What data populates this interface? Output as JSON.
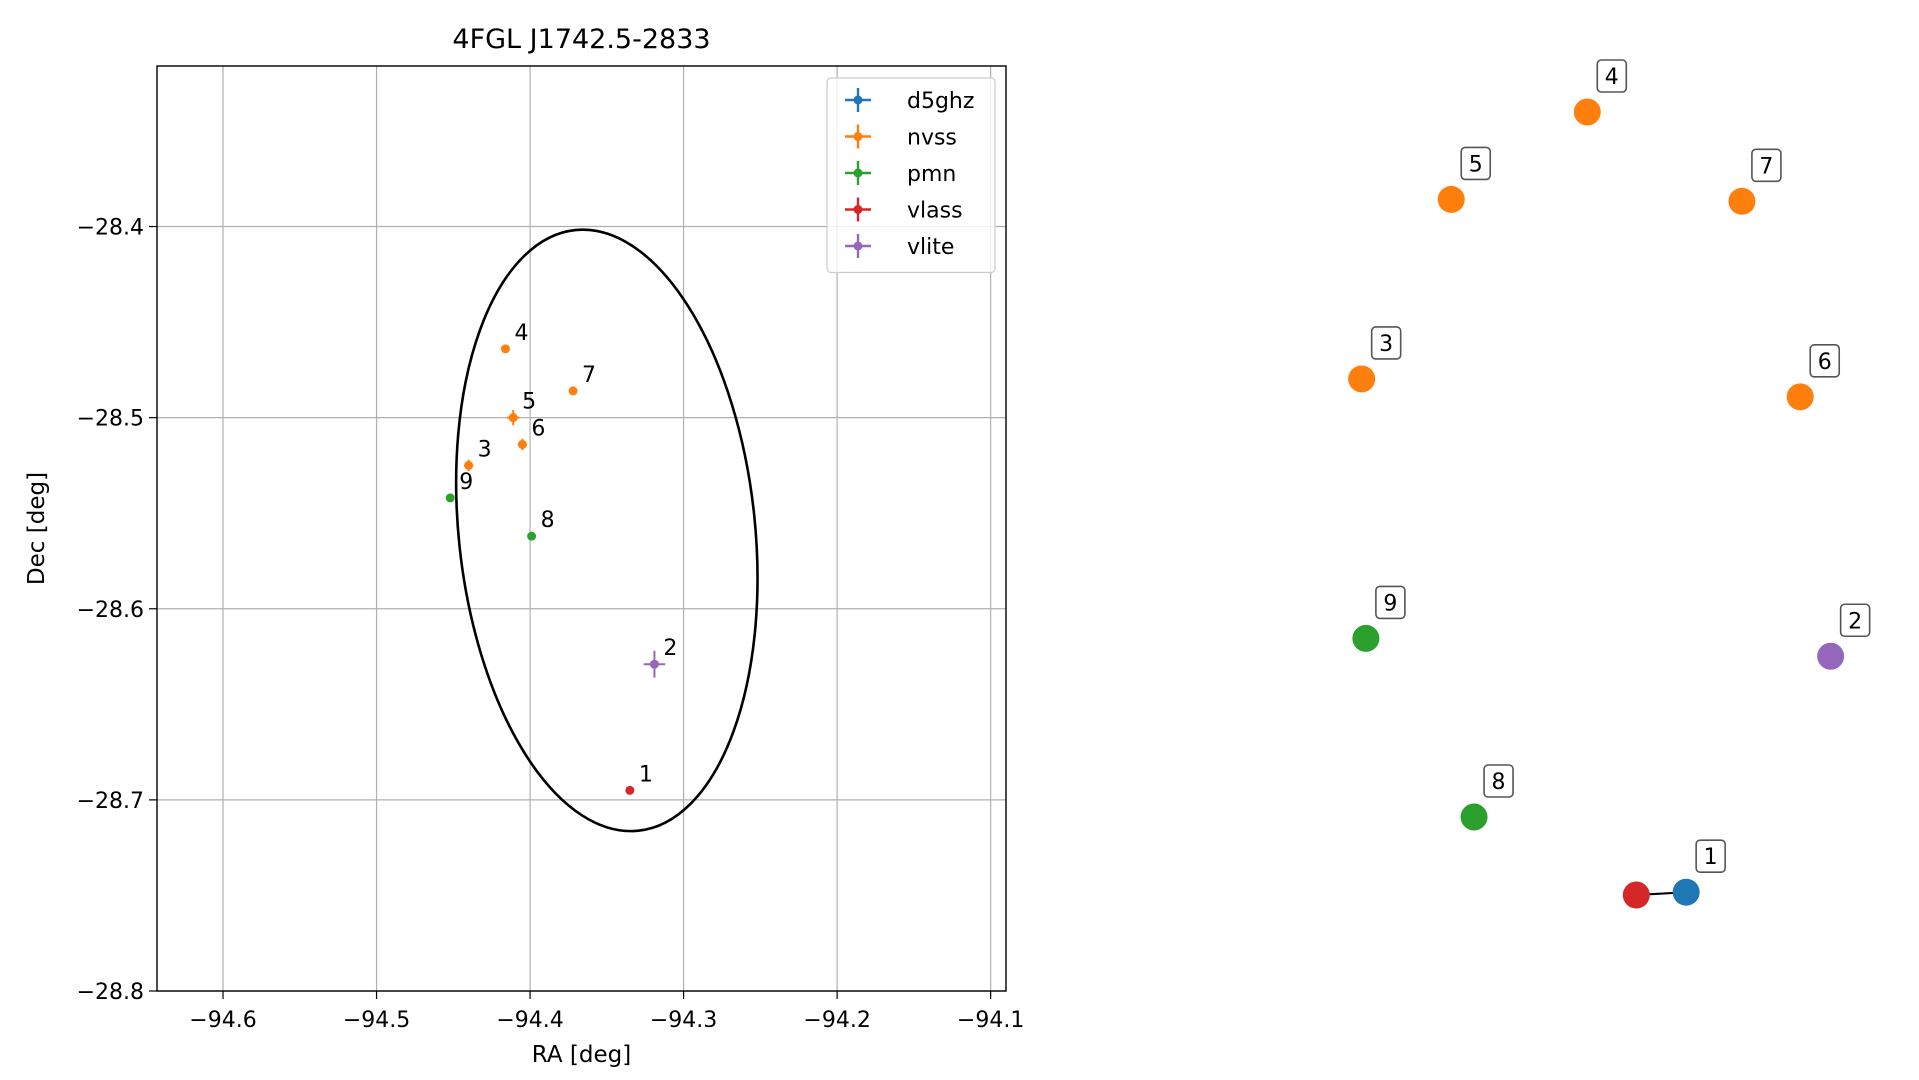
{
  "chart_data": [
    {
      "type": "scatter",
      "title": "4FGL J1742.5-2833",
      "xlabel": "RA [deg]",
      "ylabel": "Dec [deg]",
      "xlim": [
        -94.643,
        -94.09
      ],
      "ylim": [
        -28.8,
        -28.316
      ],
      "xticks": [
        -94.6,
        -94.5,
        -94.4,
        -94.3,
        -94.2,
        -94.1
      ],
      "xtick_labels": [
        "−94.6",
        "−94.5",
        "−94.4",
        "−94.3",
        "−94.2",
        "−94.1"
      ],
      "yticks": [
        -28.4,
        -28.5,
        -28.6,
        -28.7,
        -28.8
      ],
      "ytick_labels": [
        "−28.4",
        "−28.5",
        "−28.6",
        "−28.7",
        "−28.8"
      ],
      "grid": true,
      "legend_position": "top-right",
      "series": [
        {
          "name": "d5ghz",
          "color": "#1f77b4",
          "points": []
        },
        {
          "name": "nvss",
          "color": "#ff7f0e",
          "points": [
            {
              "label": "3",
              "ra": -94.44,
              "dec": -28.525,
              "err": 0.003
            },
            {
              "label": "4",
              "ra": -94.416,
              "dec": -28.464,
              "err": 0.002
            },
            {
              "label": "5",
              "ra": -94.411,
              "dec": -28.5,
              "err": 0.004
            },
            {
              "label": "6",
              "ra": -94.405,
              "dec": -28.514,
              "err": 0.003
            },
            {
              "label": "7",
              "ra": -94.372,
              "dec": -28.486,
              "err": 0.002
            }
          ]
        },
        {
          "name": "pmn",
          "color": "#2ca02c",
          "points": [
            {
              "label": "8",
              "ra": -94.399,
              "dec": -28.562,
              "err": 0.002
            },
            {
              "label": "9",
              "ra": -94.452,
              "dec": -28.542,
              "err": 0.002
            }
          ]
        },
        {
          "name": "vlass",
          "color": "#d62728",
          "points": [
            {
              "label": "1",
              "ra": -94.335,
              "dec": -28.695,
              "err": 0.001
            }
          ]
        },
        {
          "name": "vlite",
          "color": "#9467bd",
          "points": [
            {
              "label": "2",
              "ra": -94.319,
              "dec": -28.629,
              "err": 0.007
            }
          ]
        }
      ],
      "ellipse": {
        "center_ra": -94.35,
        "center_dec": -28.559,
        "semi_a_ra": 0.0965,
        "semi_b_dec": 0.158,
        "tilt_deg": -6
      }
    },
    {
      "type": "scatter",
      "title": "",
      "points": [
        {
          "label": "1",
          "color": "#1f77b4",
          "x": 0.741,
          "y": 0.12,
          "labelled": true
        },
        {
          "label": "",
          "color": "#d62728",
          "x": 0.682,
          "y": 0.117,
          "labelled": false
        },
        {
          "label": "2",
          "color": "#9467bd",
          "x": 0.912,
          "y": 0.371,
          "labelled": true
        },
        {
          "label": "3",
          "color": "#ff7f0e",
          "x": 0.357,
          "y": 0.666,
          "labelled": true
        },
        {
          "label": "4",
          "color": "#ff7f0e",
          "x": 0.624,
          "y": 0.95,
          "labelled": true
        },
        {
          "label": "5",
          "color": "#ff7f0e",
          "x": 0.463,
          "y": 0.857,
          "labelled": true
        },
        {
          "label": "6",
          "color": "#ff7f0e",
          "x": 0.876,
          "y": 0.647,
          "labelled": true
        },
        {
          "label": "7",
          "color": "#ff7f0e",
          "x": 0.807,
          "y": 0.855,
          "labelled": true
        },
        {
          "label": "8",
          "color": "#2ca02c",
          "x": 0.49,
          "y": 0.2,
          "labelled": true
        },
        {
          "label": "9",
          "color": "#2ca02c",
          "x": 0.362,
          "y": 0.39,
          "labelled": true
        }
      ],
      "links": [
        [
          "1",
          ""
        ]
      ]
    }
  ]
}
